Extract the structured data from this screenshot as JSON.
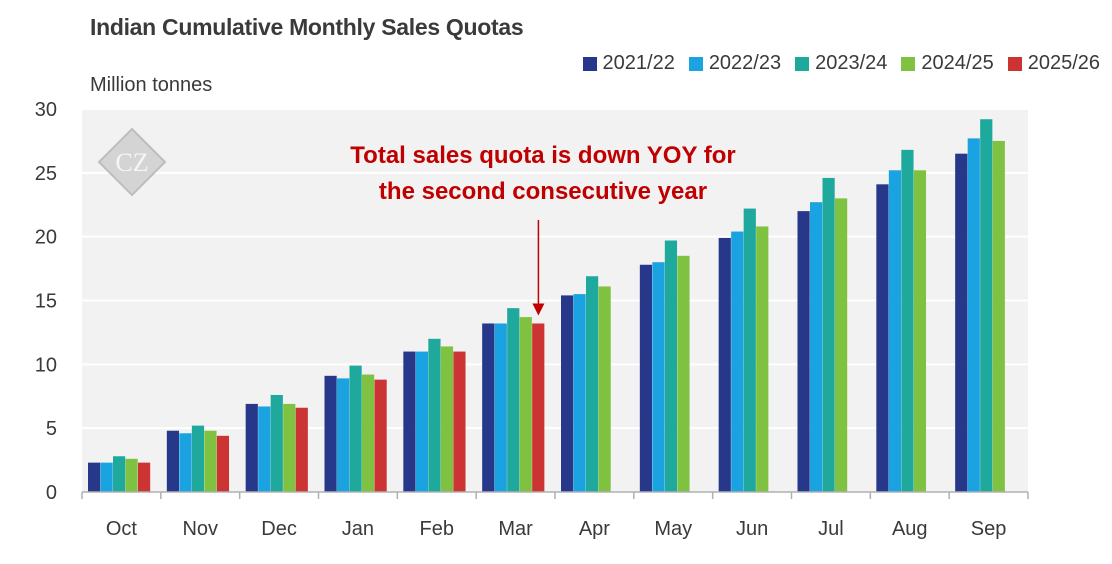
{
  "chart_data": {
    "type": "bar",
    "title": "Indian Cumulative Monthly Sales Quotas",
    "ylabel": "Million tonnes",
    "xlabel": "",
    "ylim": [
      0,
      30
    ],
    "yticks": [
      0,
      5,
      10,
      15,
      20,
      25,
      30
    ],
    "categories": [
      "Oct",
      "Nov",
      "Dec",
      "Jan",
      "Feb",
      "Mar",
      "Apr",
      "May",
      "Jun",
      "Jul",
      "Aug",
      "Sep"
    ],
    "series": [
      {
        "name": "2021/22",
        "color": "#27378a",
        "values": [
          2.3,
          4.8,
          6.9,
          9.1,
          11.0,
          13.2,
          15.4,
          17.8,
          19.9,
          22.0,
          24.1,
          26.5
        ]
      },
      {
        "name": "2022/23",
        "color": "#1aa3e0",
        "values": [
          2.3,
          4.6,
          6.7,
          8.9,
          11.0,
          13.2,
          15.5,
          18.0,
          20.4,
          22.7,
          25.2,
          27.7
        ]
      },
      {
        "name": "2023/24",
        "color": "#1fa99c",
        "values": [
          2.8,
          5.2,
          7.6,
          9.9,
          12.0,
          14.4,
          16.9,
          19.7,
          22.2,
          24.6,
          26.8,
          29.2
        ]
      },
      {
        "name": "2024/25",
        "color": "#7fc241",
        "values": [
          2.6,
          4.8,
          6.9,
          9.2,
          11.4,
          13.7,
          16.1,
          18.5,
          20.8,
          23.0,
          25.2,
          27.5
        ]
      },
      {
        "name": "2025/26",
        "color": "#cc3333",
        "values": [
          2.3,
          4.4,
          6.6,
          8.8,
          11.0,
          13.2,
          null,
          null,
          null,
          null,
          null,
          null
        ]
      }
    ],
    "annotation": {
      "text_lines": [
        "Total sales quota is down YOY for",
        "the second consecutive year"
      ],
      "color": "#c00000",
      "points_to": {
        "category": "Mar",
        "series": "2025/26"
      }
    },
    "grid": true,
    "legend_position": "top-right",
    "watermark": "CZ"
  }
}
